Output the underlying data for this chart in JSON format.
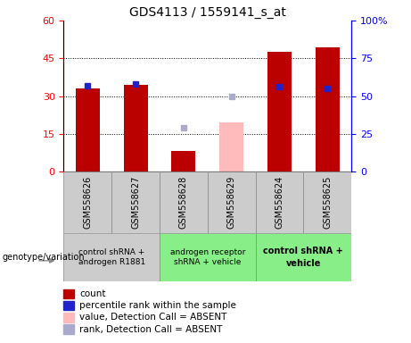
{
  "title": "GDS4113 / 1559141_s_at",
  "samples": [
    "GSM558626",
    "GSM558627",
    "GSM558628",
    "GSM558629",
    "GSM558624",
    "GSM558625"
  ],
  "count_values": [
    33.0,
    34.5,
    8.0,
    null,
    47.5,
    49.5
  ],
  "rank_present_pct": [
    57.0,
    58.0,
    null,
    null,
    56.0,
    55.0
  ],
  "count_absent_values": [
    null,
    null,
    null,
    19.5,
    null,
    null
  ],
  "rank_absent_pct": [
    null,
    null,
    29.0,
    50.0,
    null,
    null
  ],
  "ylim_left": [
    0,
    60
  ],
  "ylim_right": [
    0,
    100
  ],
  "yticks_left": [
    0,
    15,
    30,
    45,
    60
  ],
  "ytick_labels_left": [
    "0",
    "15",
    "30",
    "45",
    "60"
  ],
  "yticks_right": [
    0,
    25,
    50,
    75,
    100
  ],
  "ytick_labels_right": [
    "0",
    "25",
    "50",
    "75",
    "100%"
  ],
  "bar_color_red": "#bb0000",
  "bar_color_pink": "#ffbbbb",
  "dot_color_blue": "#2222cc",
  "dot_color_lightblue": "#aaaacc",
  "group0_color": "#cccccc",
  "group1_color": "#88ee88",
  "group2_color": "#88ee88",
  "group0_label": "control shRNA +\nandrogen R1881",
  "group1_label": "androgen receptor\nshRNA + vehicle",
  "group2_label": "control shRNA +\nvehicle",
  "genotype_label": "genotype/variation",
  "legend_labels": [
    "count",
    "percentile rank within the sample",
    "value, Detection Call = ABSENT",
    "rank, Detection Call = ABSENT"
  ],
  "legend_colors": [
    "#bb0000",
    "#2222cc",
    "#ffbbbb",
    "#aaaacc"
  ],
  "bar_width": 0.5
}
